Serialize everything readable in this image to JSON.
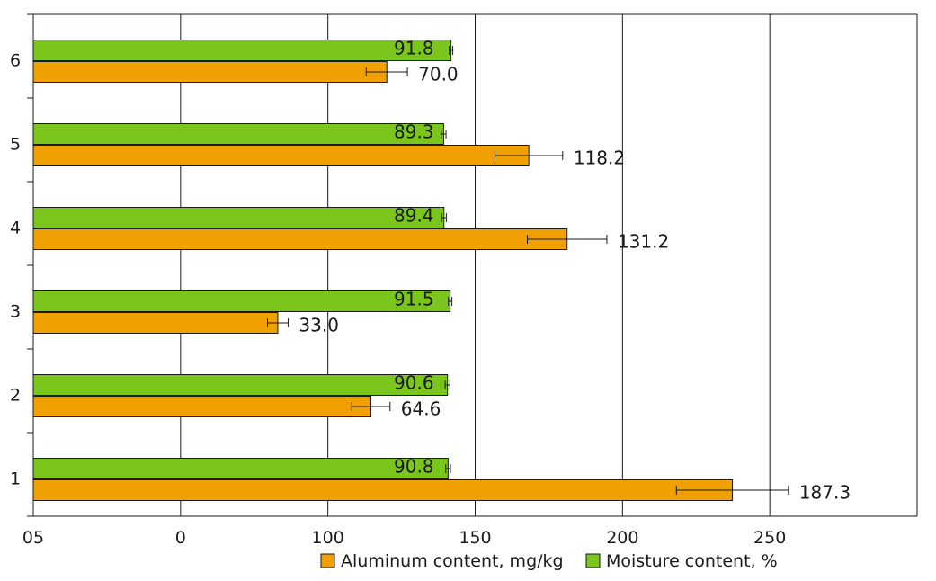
{
  "chart_data": {
    "type": "bar",
    "orientation": "horizontal",
    "categories": [
      "1",
      "2",
      "3",
      "4",
      "5",
      "6"
    ],
    "x_tick_labels": [
      "05",
      "0",
      "100",
      "150",
      "200",
      "250"
    ],
    "xlim": [
      -50,
      250
    ],
    "grid": "vertical",
    "legend_position": "bottom",
    "series": [
      {
        "name": "Aluminum content, mg/kg",
        "color": "#f0a000",
        "values": [
          187.3,
          64.6,
          33.0,
          131.2,
          118.2,
          70.0
        ],
        "labels": [
          "187.3",
          "64.6",
          "33.0",
          "131.2",
          "118.2",
          "70.0"
        ],
        "errors": [
          19,
          6.5,
          3.5,
          13.5,
          11.5,
          7
        ]
      },
      {
        "name": "Moisture content, %",
        "color": "#7ac61d",
        "values": [
          90.8,
          90.6,
          91.5,
          89.4,
          89.3,
          91.8
        ],
        "labels": [
          "90.8",
          "90.6",
          "91.5",
          "89.4",
          "89.3",
          "91.8"
        ],
        "errors": [
          0.8,
          0.8,
          0.6,
          0.8,
          0.8,
          0.6
        ]
      }
    ]
  }
}
